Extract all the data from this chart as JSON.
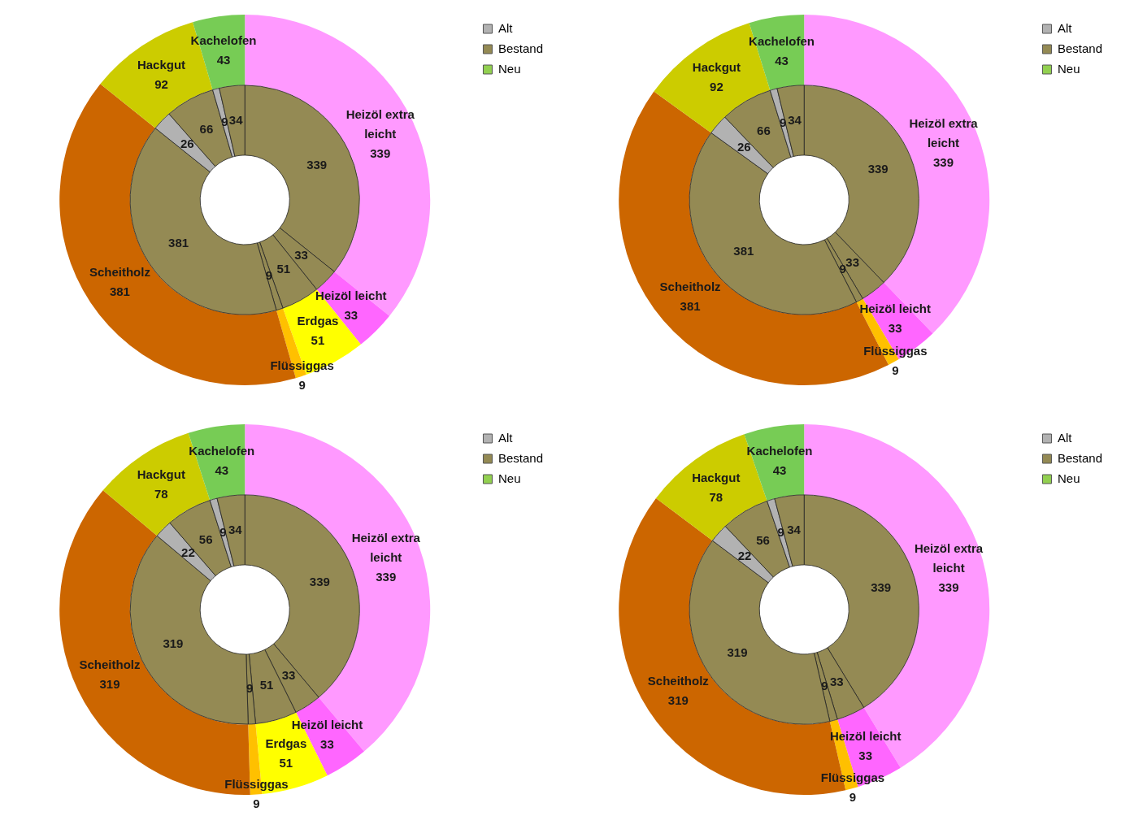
{
  "chart_data": [
    {
      "type": "donut",
      "data_labels": true,
      "categories": [
        "Heizöl extra leicht",
        "Heizöl leicht",
        "Erdgas",
        "Flüssiggas",
        "Scheitholz",
        "Hackgut",
        "Kachelofen"
      ],
      "values": [
        339,
        33,
        51,
        9,
        381,
        92,
        43
      ],
      "colors": [
        "#ff99ff",
        "#ff66ff",
        "#ffff00",
        "#ffc000",
        "#cc6600",
        "#cccc00",
        "#77cc55"
      ]
    },
    {
      "type": "donut",
      "data_labels": true,
      "legend": "top right",
      "categories": [
        "Bestand",
        null,
        null,
        null,
        null,
        "Alt",
        null,
        null,
        null,
        "Neu"
      ],
      "values": [
        339,
        33,
        51,
        9,
        381,
        26,
        66,
        9,
        34,
        0
      ],
      "colors": [
        "#948a54",
        "#948a54",
        "#948a54",
        "#948a54",
        "#948a54",
        "#b2b2b2",
        "#948a54",
        "#b2b2b2",
        "#948a54",
        "#92d050"
      ]
    },
    {
      "type": "donut",
      "data_labels": true,
      "categories": [
        "Heizöl extra leicht",
        "Heizöl leicht",
        "Flüssiggas",
        "Scheitholz",
        "Hackgut",
        "Kachelofen"
      ],
      "values": [
        339,
        33,
        9,
        381,
        92,
        43
      ],
      "colors": [
        "#ff99ff",
        "#ff66ff",
        "#ffc000",
        "#cc6600",
        "#cccc00",
        "#77cc55"
      ]
    },
    {
      "type": "donut",
      "data_labels": true,
      "legend": "top right",
      "categories": [
        "Bestand",
        null,
        null,
        null,
        "Alt",
        null,
        null,
        null,
        "Neu"
      ],
      "values": [
        339,
        33,
        9,
        381,
        26,
        66,
        9,
        34,
        0
      ],
      "colors": [
        "#948a54",
        "#948a54",
        "#948a54",
        "#948a54",
        "#b2b2b2",
        "#948a54",
        "#b2b2b2",
        "#948a54",
        "#92d050"
      ]
    },
    {
      "type": "donut",
      "data_labels": true,
      "categories": [
        "Heizöl extra leicht",
        "Heizöl leicht",
        "Erdgas",
        "Flüssiggas",
        "Scheitholz",
        "Hackgut",
        "Kachelofen"
      ],
      "values": [
        339,
        33,
        51,
        9,
        319,
        78,
        43
      ],
      "colors": [
        "#ff99ff",
        "#ff66ff",
        "#ffff00",
        "#ffc000",
        "#cc6600",
        "#cccc00",
        "#77cc55"
      ]
    },
    {
      "type": "donut",
      "data_labels": true,
      "legend": "top right",
      "categories": [
        "Bestand",
        null,
        null,
        null,
        null,
        "Alt",
        null,
        null,
        null,
        "Neu"
      ],
      "values": [
        339,
        33,
        51,
        9,
        319,
        22,
        56,
        9,
        34,
        0
      ],
      "colors": [
        "#948a54",
        "#948a54",
        "#948a54",
        "#948a54",
        "#948a54",
        "#b2b2b2",
        "#948a54",
        "#b2b2b2",
        "#948a54",
        "#92d050"
      ]
    },
    {
      "type": "donut",
      "data_labels": true,
      "categories": [
        "Heizöl extra leicht",
        "Heizöl leicht",
        "Flüssiggas",
        "Scheitholz",
        "Hackgut",
        "Kachelofen"
      ],
      "values": [
        339,
        33,
        9,
        319,
        78,
        43
      ],
      "colors": [
        "#ff99ff",
        "#ff66ff",
        "#ffc000",
        "#cc6600",
        "#cccc00",
        "#77cc55"
      ]
    },
    {
      "type": "donut",
      "data_labels": true,
      "legend": "top right",
      "categories": [
        "Bestand",
        null,
        null,
        null,
        "Alt",
        null,
        null,
        null,
        "Neu"
      ],
      "values": [
        339,
        33,
        9,
        319,
        22,
        56,
        9,
        34,
        0
      ],
      "colors": [
        "#948a54",
        "#948a54",
        "#948a54",
        "#948a54",
        "#b2b2b2",
        "#948a54",
        "#b2b2b2",
        "#948a54",
        "#92d050"
      ]
    }
  ]
}
